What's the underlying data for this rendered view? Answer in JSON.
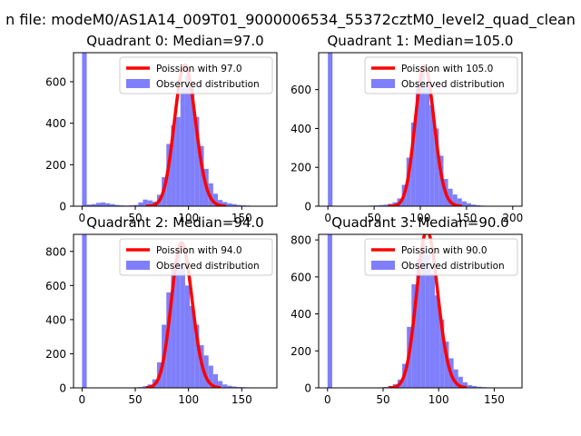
{
  "figure": {
    "suptitle": "n file: modeM0/AS1A14_009T01_9000006534_55372cztM0_level2_quad_clean"
  },
  "colors": {
    "bar_fill": "#7f7ffc",
    "poisson_line": "#ff0000",
    "axes": "#000000",
    "background": "#ffffff"
  },
  "chart_data": [
    {
      "type": "bar",
      "title": "Quadrant 0: Median=97.0",
      "xlim": [
        -8,
        183
      ],
      "ylim": [
        0,
        740
      ],
      "xticks": [
        0,
        50,
        100,
        150
      ],
      "yticks": [
        0,
        200,
        400,
        600
      ],
      "legend": {
        "position": "top-right",
        "entries": [
          "Poission with 97.0",
          "Observed distribution"
        ]
      },
      "histogram": {
        "name": "Observed distribution",
        "bin_width": 4.4,
        "bin_starts": [
          0,
          4.4,
          8.8,
          13.2,
          17.6,
          22,
          26.4,
          30.8,
          35.2,
          39.6,
          44,
          48.4,
          52.8,
          57.2,
          61.6,
          66,
          70.4,
          74.8,
          79.2,
          83.6,
          88,
          92.4,
          96.8,
          101.2,
          105.6,
          110,
          114.4,
          118.8,
          123.2,
          127.6,
          132,
          136.4,
          140.8,
          145.2,
          149.6,
          154,
          158.4,
          162.8,
          167.2,
          171.6
        ],
        "counts": [
          740,
          8,
          10,
          16,
          18,
          14,
          10,
          6,
          4,
          3,
          4,
          6,
          18,
          32,
          28,
          22,
          55,
          140,
          300,
          390,
          430,
          570,
          630,
          590,
          430,
          290,
          180,
          110,
          60,
          30,
          20,
          14,
          10,
          6,
          4,
          3,
          2,
          1,
          1,
          0
        ]
      },
      "poisson": {
        "name": "Poission with 97.0",
        "lambda": 97.0,
        "peak": 680,
        "x_range": [
          60,
          135
        ]
      }
    },
    {
      "type": "bar",
      "title": "Quadrant 1: Median=105.0",
      "xlim": [
        -10,
        210
      ],
      "ylim": [
        0,
        790
      ],
      "xticks": [
        0,
        50,
        100,
        150,
        200
      ],
      "yticks": [
        0,
        200,
        400,
        600
      ],
      "legend": {
        "position": "top-right",
        "entries": [
          "Poission with 105.0",
          "Observed distribution"
        ]
      },
      "histogram": {
        "name": "Observed distribution",
        "bin_width": 5,
        "bin_starts": [
          0,
          5,
          10,
          15,
          20,
          25,
          30,
          35,
          40,
          45,
          50,
          55,
          60,
          65,
          70,
          75,
          80,
          85,
          90,
          95,
          100,
          105,
          110,
          115,
          120,
          125,
          130,
          135,
          140,
          145,
          150,
          155,
          160,
          165,
          170,
          175,
          180,
          185,
          190,
          195
        ],
        "counts": [
          790,
          2,
          1,
          1,
          1,
          1,
          1,
          1,
          2,
          3,
          4,
          6,
          8,
          12,
          20,
          40,
          110,
          250,
          430,
          650,
          700,
          620,
          520,
          400,
          260,
          140,
          90,
          60,
          40,
          25,
          15,
          8,
          5,
          3,
          2,
          1,
          1,
          0,
          0,
          0
        ]
      },
      "poisson": {
        "name": "Poission with 105.0",
        "lambda": 105.0,
        "peak": 720,
        "x_range": [
          65,
          145
        ]
      }
    },
    {
      "type": "bar",
      "title": "Quadrant 2: Median=94.0",
      "xlim": [
        -8,
        183
      ],
      "ylim": [
        0,
        900
      ],
      "xticks": [
        0,
        50,
        100,
        150
      ],
      "yticks": [
        0,
        200,
        400,
        600,
        800
      ],
      "legend": {
        "position": "top-right",
        "entries": [
          "Poission with 94.0",
          "Observed distribution"
        ]
      },
      "histogram": {
        "name": "Observed distribution",
        "bin_width": 4.4,
        "bin_starts": [
          0,
          4.4,
          8.8,
          13.2,
          17.6,
          22,
          26.4,
          30.8,
          35.2,
          39.6,
          44,
          48.4,
          52.8,
          57.2,
          61.6,
          66,
          70.4,
          74.8,
          79.2,
          83.6,
          88,
          92.4,
          96.8,
          101.2,
          105.6,
          110,
          114.4,
          118.8,
          123.2,
          127.6,
          132,
          136.4,
          140.8,
          145.2,
          149.6,
          154,
          158.4,
          162.8,
          167.2,
          171.6
        ],
        "counts": [
          900,
          1,
          1,
          1,
          1,
          1,
          1,
          1,
          1,
          1,
          2,
          3,
          5,
          10,
          20,
          50,
          150,
          370,
          560,
          720,
          820,
          720,
          600,
          480,
          370,
          250,
          190,
          130,
          80,
          40,
          20,
          12,
          8,
          5,
          4,
          3,
          2,
          1,
          1,
          0
        ]
      },
      "poisson": {
        "name": "Poission with 94.0",
        "lambda": 94.0,
        "peak": 850,
        "x_range": [
          60,
          130
        ]
      }
    },
    {
      "type": "bar",
      "title": "Quadrant 3: Median=90.0",
      "xlim": [
        -8,
        175
      ],
      "ylim": [
        0,
        830
      ],
      "xticks": [
        0,
        50,
        100,
        150
      ],
      "yticks": [
        0,
        200,
        400,
        600,
        800
      ],
      "legend": {
        "position": "top-right",
        "entries": [
          "Poission with 90.0",
          "Observed distribution"
        ]
      },
      "histogram": {
        "name": "Observed distribution",
        "bin_width": 4.2,
        "bin_starts": [
          0,
          4.2,
          8.4,
          12.6,
          16.8,
          21,
          25.2,
          29.4,
          33.6,
          37.8,
          42,
          46.2,
          50.4,
          54.6,
          58.8,
          63,
          67.2,
          71.4,
          75.6,
          79.8,
          84,
          88.2,
          92.4,
          96.6,
          100.8,
          105,
          109.2,
          113.4,
          117.6,
          121.8,
          126,
          130.2,
          134.4,
          138.6,
          142.8,
          147,
          151.2,
          155.4,
          159.6,
          163.8
        ],
        "counts": [
          830,
          1,
          1,
          1,
          1,
          1,
          1,
          1,
          1,
          1,
          2,
          3,
          5,
          10,
          20,
          45,
          130,
          330,
          560,
          700,
          780,
          720,
          620,
          500,
          370,
          250,
          160,
          100,
          60,
          30,
          15,
          10,
          6,
          4,
          3,
          2,
          1,
          1,
          0,
          0
        ]
      },
      "poisson": {
        "name": "Poission with 90.0",
        "lambda": 90.0,
        "peak": 850,
        "x_range": [
          55,
          125
        ]
      }
    }
  ]
}
